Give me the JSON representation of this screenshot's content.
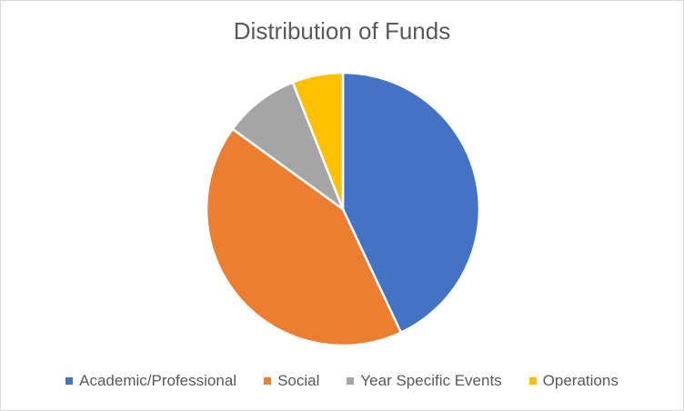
{
  "chart_data": {
    "type": "pie",
    "title": "Distribution of Funds",
    "categories": [
      "Academic/Professional",
      "Social",
      "Year Specific Events",
      "Operations"
    ],
    "values": [
      43,
      42,
      9,
      6
    ],
    "colors": [
      "#4472c4",
      "#ed7d31",
      "#a5a5a5",
      "#ffc000"
    ],
    "start_angle_deg": 0,
    "direction": "clockwise",
    "legend_position": "bottom"
  }
}
